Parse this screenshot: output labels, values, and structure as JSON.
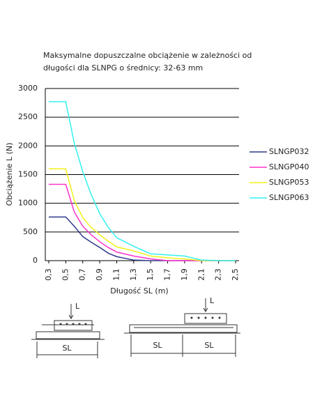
{
  "chart_data": {
    "type": "line",
    "title": [
      "Maksymalne dopuszczalne obciążenie w zależności od",
      "długości dla SLNPG o średnicy: 32-63 mm"
    ],
    "y_label": "Obciążenie L (N)",
    "x_label": "Długość SL (m)",
    "x": [
      0.3,
      0.5,
      0.6,
      0.7,
      0.8,
      0.9,
      1.0,
      1.1,
      1.3,
      1.5,
      1.7,
      1.9,
      2.1,
      2.3,
      2.5
    ],
    "series": [
      {
        "name": "SLNGP032",
        "color": "#2e3a8c",
        "values": [
          760,
          760,
          600,
          420,
          320,
          230,
          130,
          70,
          10,
          0,
          0,
          0,
          0,
          0,
          0
        ]
      },
      {
        "name": "SLNGP040",
        "color": "#ff33cc",
        "values": [
          1330,
          1330,
          850,
          600,
          450,
          330,
          230,
          150,
          80,
          30,
          0,
          0,
          0,
          0,
          0
        ]
      },
      {
        "name": "SLNGP053",
        "color": "#f2f21a",
        "values": [
          1600,
          1600,
          1050,
          750,
          580,
          450,
          340,
          240,
          170,
          80,
          50,
          30,
          0,
          0,
          0
        ]
      },
      {
        "name": "SLNGP063",
        "color": "#33f0f0",
        "values": [
          2770,
          2770,
          2050,
          1550,
          1150,
          820,
          580,
          400,
          250,
          120,
          100,
          80,
          10,
          0,
          0
        ]
      }
    ],
    "xlim": [
      0.3,
      2.5
    ],
    "xticks": [
      {
        "value": 0.3,
        "label": "0,3"
      },
      {
        "value": 0.5,
        "label": "0,5"
      },
      {
        "value": 0.7,
        "label": "0,7"
      },
      {
        "value": 0.9,
        "label": "0,9"
      },
      {
        "value": 1.1,
        "label": "1,1"
      },
      {
        "value": 1.3,
        "label": "1,3"
      },
      {
        "value": 1.5,
        "label": "1,5"
      },
      {
        "value": 1.7,
        "label": "1,7"
      },
      {
        "value": 1.9,
        "label": "1,9"
      },
      {
        "value": 2.1,
        "label": "2,1"
      },
      {
        "value": 2.3,
        "label": "2,3"
      },
      {
        "value": 2.5,
        "label": "2,5"
      }
    ],
    "ylim": [
      0,
      3000
    ],
    "yticks": [
      0,
      500,
      1000,
      1500,
      2000,
      2500,
      3000
    ],
    "grid": true
  },
  "diagrams": {
    "left": {
      "load": "L",
      "length": "SL"
    },
    "right": {
      "load": "L",
      "length_1": "SL",
      "length_2": "SL"
    }
  }
}
